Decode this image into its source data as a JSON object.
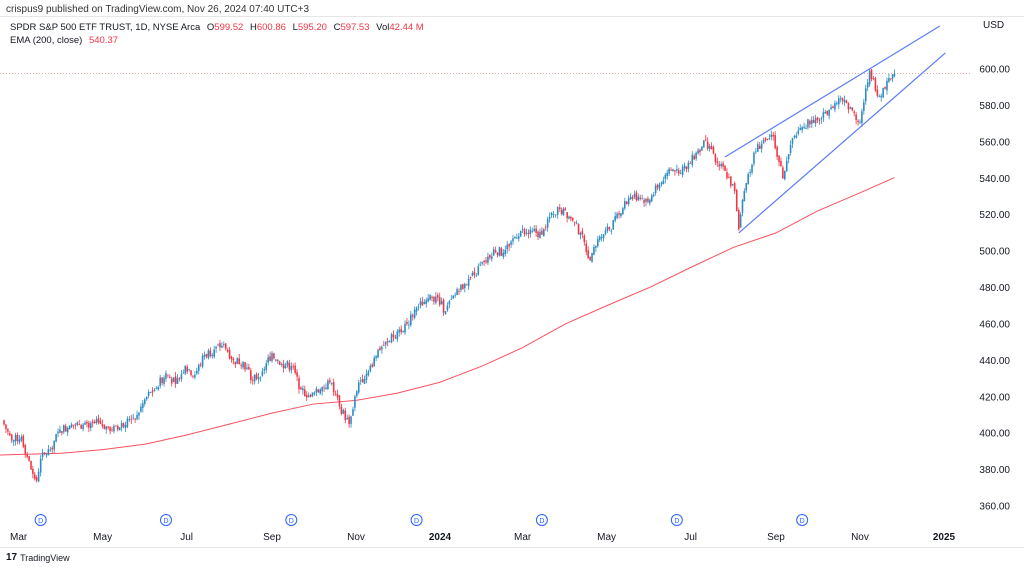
{
  "publisher_line": "crispus9 published on TradingView.com, Nov 26, 2024 07:40 UTC+3",
  "legend": {
    "symbol": "SPDR S&P 500 ETF TRUST, 1D, NYSE Arca",
    "o_label": "O",
    "o": "599.52",
    "h_label": "H",
    "h": "600.86",
    "l_label": "L",
    "l": "595.20",
    "c_label": "C",
    "c": "597.53",
    "vol_label": "Vol",
    "vol": "42.44 M",
    "ema_label": "EMA (200, close)",
    "ema": "540.37"
  },
  "currency": "USD",
  "footer": {
    "brand": "TradingView",
    "logo": "17"
  },
  "chart_data": {
    "type": "candlestick",
    "title": "SPDR S&P 500 ETF TRUST, 1D, NYSE Arca",
    "ylim": [
      350,
      625
    ],
    "xlim": [
      "2023-02-15",
      "2025-02-20"
    ],
    "y_ticks": [
      "360.00",
      "380.00",
      "400.00",
      "420.00",
      "440.00",
      "460.00",
      "480.00",
      "500.00",
      "520.00",
      "540.00",
      "560.00",
      "580.00",
      "600.00"
    ],
    "x_ticks": [
      {
        "label": "Mar",
        "date": "2023-03-01"
      },
      {
        "label": "May",
        "date": "2023-05-01"
      },
      {
        "label": "Jul",
        "date": "2023-07-01"
      },
      {
        "label": "Sep",
        "date": "2023-09-01"
      },
      {
        "label": "Nov",
        "date": "2023-11-01"
      },
      {
        "label": "2024",
        "date": "2024-01-01",
        "bold": true
      },
      {
        "label": "Mar",
        "date": "2024-03-01"
      },
      {
        "label": "May",
        "date": "2024-05-01"
      },
      {
        "label": "Jul",
        "date": "2024-07-01"
      },
      {
        "label": "Sep",
        "date": "2024-09-01"
      },
      {
        "label": "Nov",
        "date": "2024-11-01"
      },
      {
        "label": "2025",
        "date": "2025-01-01",
        "bold": true
      }
    ],
    "weekly_closes": [
      [
        "2023-02-17",
        407
      ],
      [
        "2023-02-24",
        396
      ],
      [
        "2023-03-03",
        398
      ],
      [
        "2023-03-10",
        380
      ],
      [
        "2023-03-14",
        374
      ],
      [
        "2023-03-17",
        386
      ],
      [
        "2023-03-24",
        391
      ],
      [
        "2023-03-31",
        402
      ],
      [
        "2023-04-07",
        404
      ],
      [
        "2023-04-14",
        405
      ],
      [
        "2023-04-21",
        403
      ],
      [
        "2023-04-28",
        406
      ],
      [
        "2023-05-05",
        403
      ],
      [
        "2023-05-12",
        402
      ],
      [
        "2023-05-19",
        408
      ],
      [
        "2023-05-26",
        410
      ],
      [
        "2023-06-02",
        420
      ],
      [
        "2023-06-09",
        425
      ],
      [
        "2023-06-16",
        433
      ],
      [
        "2023-06-23",
        427
      ],
      [
        "2023-06-30",
        437
      ],
      [
        "2023-07-07",
        432
      ],
      [
        "2023-07-14",
        443
      ],
      [
        "2023-07-21",
        446
      ],
      [
        "2023-07-28",
        449
      ],
      [
        "2023-08-04",
        440
      ],
      [
        "2023-08-11",
        439
      ],
      [
        "2023-08-18",
        429
      ],
      [
        "2023-08-25",
        434
      ],
      [
        "2023-09-01",
        444
      ],
      [
        "2023-09-08",
        438
      ],
      [
        "2023-09-15",
        437
      ],
      [
        "2023-09-22",
        424
      ],
      [
        "2023-09-29",
        420
      ],
      [
        "2023-10-06",
        424
      ],
      [
        "2023-10-13",
        428
      ],
      [
        "2023-10-20",
        415
      ],
      [
        "2023-10-27",
        405
      ],
      [
        "2023-11-03",
        428
      ],
      [
        "2023-11-10",
        434
      ],
      [
        "2023-11-17",
        446
      ],
      [
        "2023-11-24",
        450
      ],
      [
        "2023-12-01",
        456
      ],
      [
        "2023-12-08",
        460
      ],
      [
        "2023-12-15",
        469
      ],
      [
        "2023-12-22",
        473
      ],
      [
        "2023-12-29",
        475
      ],
      [
        "2024-01-05",
        467
      ],
      [
        "2024-01-12",
        476
      ],
      [
        "2024-01-19",
        482
      ],
      [
        "2024-01-26",
        487
      ],
      [
        "2024-02-02",
        494
      ],
      [
        "2024-02-09",
        501
      ],
      [
        "2024-02-16",
        499
      ],
      [
        "2024-02-23",
        507
      ],
      [
        "2024-03-01",
        512
      ],
      [
        "2024-03-08",
        511
      ],
      [
        "2024-03-15",
        509
      ],
      [
        "2024-03-22",
        521
      ],
      [
        "2024-03-28",
        523
      ],
      [
        "2024-04-05",
        518
      ],
      [
        "2024-04-12",
        510
      ],
      [
        "2024-04-19",
        495
      ],
      [
        "2024-04-26",
        508
      ],
      [
        "2024-05-03",
        512
      ],
      [
        "2024-05-10",
        520
      ],
      [
        "2024-05-17",
        529
      ],
      [
        "2024-05-24",
        530
      ],
      [
        "2024-05-31",
        527
      ],
      [
        "2024-06-07",
        535
      ],
      [
        "2024-06-14",
        543
      ],
      [
        "2024-06-21",
        545
      ],
      [
        "2024-06-28",
        545
      ],
      [
        "2024-07-05",
        554
      ],
      [
        "2024-07-12",
        561
      ],
      [
        "2024-07-19",
        549
      ],
      [
        "2024-07-26",
        544
      ],
      [
        "2024-08-02",
        533
      ],
      [
        "2024-08-05",
        512
      ],
      [
        "2024-08-09",
        533
      ],
      [
        "2024-08-16",
        554
      ],
      [
        "2024-08-23",
        561
      ],
      [
        "2024-08-30",
        563
      ],
      [
        "2024-09-06",
        540
      ],
      [
        "2024-09-13",
        562
      ],
      [
        "2024-09-20",
        568
      ],
      [
        "2024-09-27",
        572
      ],
      [
        "2024-10-04",
        573
      ],
      [
        "2024-10-11",
        579
      ],
      [
        "2024-10-18",
        584
      ],
      [
        "2024-10-25",
        579
      ],
      [
        "2024-11-01",
        571
      ],
      [
        "2024-11-08",
        599
      ],
      [
        "2024-11-15",
        585
      ],
      [
        "2024-11-22",
        595
      ],
      [
        "2024-11-26",
        597.53
      ]
    ],
    "ema_200": [
      [
        "2023-02-15",
        388
      ],
      [
        "2023-04-01",
        389
      ],
      [
        "2023-05-01",
        391
      ],
      [
        "2023-06-01",
        394
      ],
      [
        "2023-07-01",
        399
      ],
      [
        "2023-08-01",
        405
      ],
      [
        "2023-09-01",
        411
      ],
      [
        "2023-10-01",
        416
      ],
      [
        "2023-11-01",
        418
      ],
      [
        "2023-12-01",
        422
      ],
      [
        "2024-01-01",
        428
      ],
      [
        "2024-02-01",
        437
      ],
      [
        "2024-03-01",
        447
      ],
      [
        "2024-04-01",
        460
      ],
      [
        "2024-05-01",
        470
      ],
      [
        "2024-06-01",
        480
      ],
      [
        "2024-07-01",
        491
      ],
      [
        "2024-08-01",
        502
      ],
      [
        "2024-09-01",
        510
      ],
      [
        "2024-10-01",
        522
      ],
      [
        "2024-11-01",
        532
      ],
      [
        "2024-11-26",
        540.37
      ]
    ],
    "trendlines": [
      {
        "from": [
          "2024-07-26",
          551.7
        ],
        "to": [
          "2024-12-29",
          623.6
        ]
      },
      {
        "from": [
          "2024-08-05",
          510
        ],
        "to": [
          "2025-01-02",
          608.8
        ]
      }
    ],
    "last_price": 597.53,
    "dividends": [
      "2023-03-17",
      "2023-06-16",
      "2023-09-15",
      "2023-12-15",
      "2024-03-15",
      "2024-06-21",
      "2024-09-20"
    ],
    "dividend_label": "D",
    "colors": {
      "up": "#2b8cc4",
      "down": "#f23645",
      "ema": "#f7525f",
      "trendline": "#5b7cf5",
      "last_price_line": "#f7a1a8",
      "dividend": "#2962ff"
    }
  }
}
